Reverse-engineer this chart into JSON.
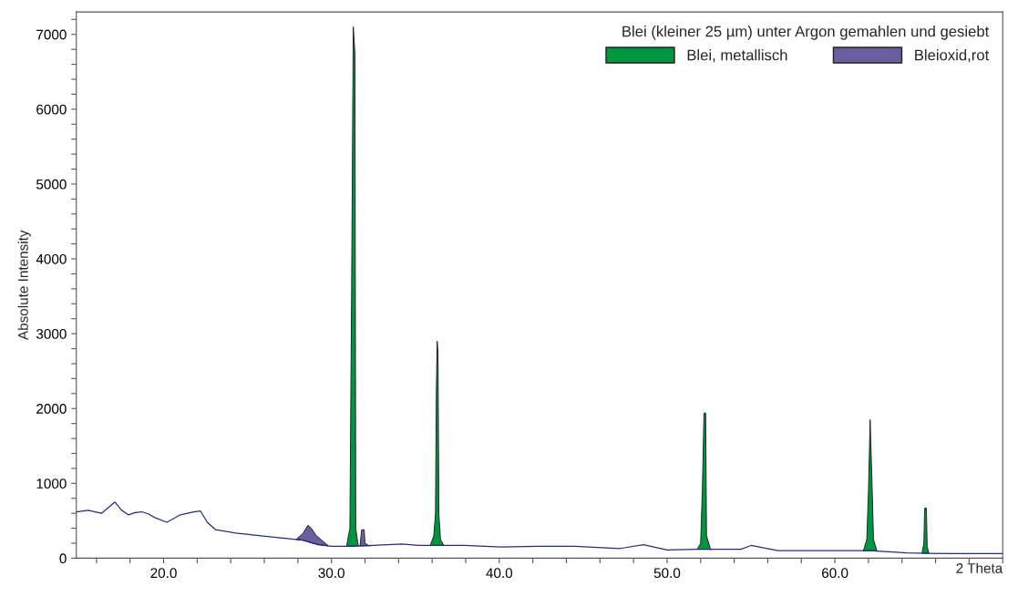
{
  "chart_data": {
    "type": "line",
    "ylabel": "Absolute Intensity",
    "xlabel": "2 Theta",
    "legend_title": "Blei (kleiner 25 µm) unter Argon gemahlen und gesiebt",
    "legend": "top right",
    "grid": false,
    "xlim": [
      14.8,
      70
    ],
    "xticks": [
      {
        "value": 16,
        "label": null
      },
      {
        "value": 18,
        "label": null
      },
      {
        "value": 20,
        "label": "20.0"
      },
      {
        "value": 22,
        "label": null
      },
      {
        "value": 24,
        "label": null
      },
      {
        "value": 26,
        "label": null
      },
      {
        "value": 28,
        "label": null
      },
      {
        "value": 30,
        "label": "30.0"
      },
      {
        "value": 32,
        "label": null
      },
      {
        "value": 34,
        "label": null
      },
      {
        "value": 36,
        "label": null
      },
      {
        "value": 38,
        "label": null
      },
      {
        "value": 40,
        "label": "40.0"
      },
      {
        "value": 42,
        "label": null
      },
      {
        "value": 44,
        "label": null
      },
      {
        "value": 46,
        "label": null
      },
      {
        "value": 48,
        "label": null
      },
      {
        "value": 50,
        "label": "50.0"
      },
      {
        "value": 52,
        "label": null
      },
      {
        "value": 54,
        "label": null
      },
      {
        "value": 56,
        "label": null
      },
      {
        "value": 58,
        "label": null
      },
      {
        "value": 60,
        "label": "60.0"
      },
      {
        "value": 62,
        "label": null
      },
      {
        "value": 64,
        "label": null
      },
      {
        "value": 66,
        "label": null
      },
      {
        "value": 68,
        "label": null
      },
      {
        "value": 70,
        "label": null
      }
    ],
    "ylim": [
      0,
      7300
    ],
    "yticks": [
      0,
      {
        "value": 200,
        "label": null
      },
      {
        "value": 400,
        "label": null
      },
      {
        "value": 600,
        "label": null
      },
      {
        "value": 800,
        "label": null
      },
      1000,
      {
        "value": 1200,
        "label": null
      },
      {
        "value": 1400,
        "label": null
      },
      {
        "value": 1600,
        "label": null
      },
      {
        "value": 1800,
        "label": null
      },
      2000,
      {
        "value": 2200,
        "label": null
      },
      {
        "value": 2400,
        "label": null
      },
      {
        "value": 2600,
        "label": null
      },
      {
        "value": 2800,
        "label": null
      },
      3000,
      {
        "value": 3200,
        "label": null
      },
      {
        "value": 3400,
        "label": null
      },
      {
        "value": 3600,
        "label": null
      },
      {
        "value": 3800,
        "label": null
      },
      4000,
      {
        "value": 4200,
        "label": null
      },
      {
        "value": 4400,
        "label": null
      },
      {
        "value": 4600,
        "label": null
      },
      {
        "value": 4800,
        "label": null
      },
      5000,
      {
        "value": 5200,
        "label": null
      },
      {
        "value": 5400,
        "label": null
      },
      {
        "value": 5600,
        "label": null
      },
      {
        "value": 5800,
        "label": null
      },
      6000,
      {
        "value": 6200,
        "label": null
      },
      {
        "value": 6400,
        "label": null
      },
      {
        "value": 6600,
        "label": null
      },
      {
        "value": 6800,
        "label": null
      },
      7000,
      {
        "value": 7200,
        "label": null
      }
    ],
    "series": [
      {
        "color": "#2b2a7a",
        "x": [
          14.8,
          15.5,
          16.3,
          17.1,
          17.5,
          17.9,
          18.3,
          18.7,
          19.1,
          19.5,
          20.2,
          21.0,
          21.8,
          22.2,
          22.6,
          23.1,
          24.2,
          25.8,
          27.5,
          28.3,
          29.2,
          30.0,
          31.1,
          32.5,
          34.2,
          35.2,
          37.9,
          40.1,
          42.3,
          44.5,
          47.2,
          48.6,
          50.0,
          52.0,
          54.4,
          55.0,
          56.6,
          59.9,
          62.1,
          64.3,
          67.0,
          70.0
        ],
        "values": [
          620,
          640,
          600,
          750,
          640,
          580,
          610,
          620,
          590,
          540,
          480,
          580,
          620,
          630,
          480,
          380,
          340,
          300,
          260,
          240,
          180,
          160,
          160,
          170,
          190,
          170,
          170,
          150,
          160,
          160,
          130,
          180,
          110,
          120,
          120,
          170,
          100,
          100,
          100,
          70,
          60,
          60
        ]
      },
      {
        "type": "area",
        "name": "Blei, metallisch",
        "color": "#00963f",
        "x": [
          30.9,
          31.1,
          31.2,
          31.3,
          31.4,
          31.45,
          31.6,
          null,
          35.9,
          36.1,
          36.2,
          36.25,
          36.3,
          36.35,
          36.4,
          36.5,
          36.7,
          null,
          51.8,
          52.0,
          52.1,
          52.2,
          52.3,
          52.35,
          52.6,
          null,
          61.7,
          61.9,
          62.0,
          62.1,
          62.2,
          62.3,
          62.5,
          null,
          65.2,
          65.3,
          65.35,
          65.45,
          65.5,
          65.6
        ],
        "values": [
          160,
          400,
          3500,
          7100,
          6750,
          400,
          160,
          null,
          180,
          300,
          600,
          2200,
          2900,
          2750,
          600,
          250,
          170,
          null,
          120,
          200,
          900,
          1940,
          1940,
          300,
          110,
          null,
          100,
          250,
          900,
          1850,
          1100,
          250,
          100,
          null,
          80,
          200,
          670,
          670,
          150,
          70
        ]
      },
      {
        "type": "area",
        "name": "Bleioxid,rot",
        "color": "#6b5ea0",
        "x": [
          27.9,
          28.3,
          28.6,
          28.8,
          29.1,
          29.8,
          null,
          31.7,
          31.8,
          31.95,
          32.0,
          32.3
        ],
        "values": [
          250,
          330,
          440,
          400,
          300,
          170,
          null,
          160,
          380,
          380,
          200,
          160
        ]
      }
    ]
  }
}
